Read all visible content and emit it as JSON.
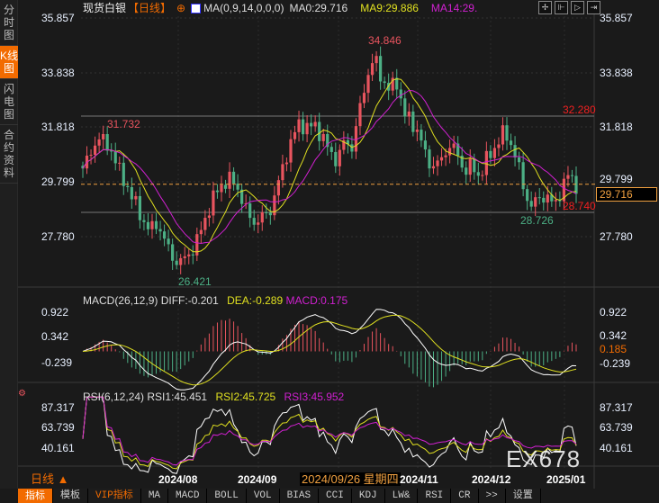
{
  "sidebar": {
    "items": [
      {
        "label": "分时图",
        "active": false
      },
      {
        "label": "K线图",
        "active": true
      },
      {
        "label": "闪电图",
        "active": false
      },
      {
        "label": "合约资料",
        "active": false
      }
    ]
  },
  "header": {
    "instrument": "现货白银",
    "period": "【日线】",
    "ma_label": "MA(0,9,14,0,0,0)",
    "ma0": "MA0:29.716",
    "ma9": "MA9:29.886",
    "ma14": "MA14:29."
  },
  "colors": {
    "up": "#e8545e",
    "down": "#4caf85",
    "ma9": "#e0e020",
    "ma14": "#d020d0",
    "accent": "#f26b00"
  },
  "price_axis": [
    "35.857",
    "33.838",
    "31.818",
    "29.799",
    "27.780"
  ],
  "annotations": {
    "high_left": "31.732",
    "high_main": "34.846",
    "low_main": "26.421",
    "line_upper": "32.280",
    "line_lower": "28.740",
    "low_right": "28.726",
    "current": "29.716"
  },
  "price_keypoints": [
    30.3,
    30.8,
    31.5,
    31.2,
    30.9,
    30.1,
    29.6,
    29.0,
    28.4,
    28.0,
    28.3,
    27.6,
    27.0,
    26.8,
    27.1,
    27.4,
    28.2,
    28.9,
    29.5,
    29.8,
    29.9,
    29.4,
    28.6,
    28.3,
    28.5,
    28.7,
    29.6,
    30.6,
    31.4,
    32.0,
    31.8,
    31.9,
    31.5,
    30.9,
    30.6,
    31.3,
    31.1,
    32.4,
    33.7,
    34.4,
    33.6,
    33.2,
    33.5,
    32.3,
    32.0,
    31.6,
    30.6,
    30.4,
    30.6,
    31.2,
    30.9,
    30.2,
    30.4,
    30.0,
    30.6,
    31.0,
    31.6,
    31.4,
    30.7,
    29.5,
    28.9,
    29.2,
    29.3,
    28.9,
    29.5,
    30.1,
    29.7
  ],
  "macd": {
    "label": "MACD(26,12,9)",
    "diff": "DIFF:-0.201",
    "dea": "DEA:-0.289",
    "macd": "MACD:0.175",
    "axis": [
      "0.922",
      "0.342",
      "-0.239"
    ],
    "current": "0.185"
  },
  "rsi": {
    "label": "RSI(6,12,24)",
    "rsi1": "RSI1:45.451",
    "rsi2": "RSI2:45.725",
    "rsi3": "RSI3:45.952",
    "axis": [
      "87.317",
      "63.739",
      "40.161"
    ]
  },
  "dates": [
    "2024/08",
    "2024/09",
    "2024/11",
    "2024/12",
    "2025/01"
  ],
  "cursor_date": "2024/09/26 星期四",
  "period_selector": "日线 ▲",
  "watermark": "EX678",
  "toolbar": [
    "指标",
    "模板",
    "VIP指标",
    "MA",
    "MACD",
    "BOLL",
    "VOL",
    "BIAS",
    "CCI",
    "KDJ",
    "LW&",
    "RSI",
    "CR",
    ">>",
    "设置"
  ]
}
